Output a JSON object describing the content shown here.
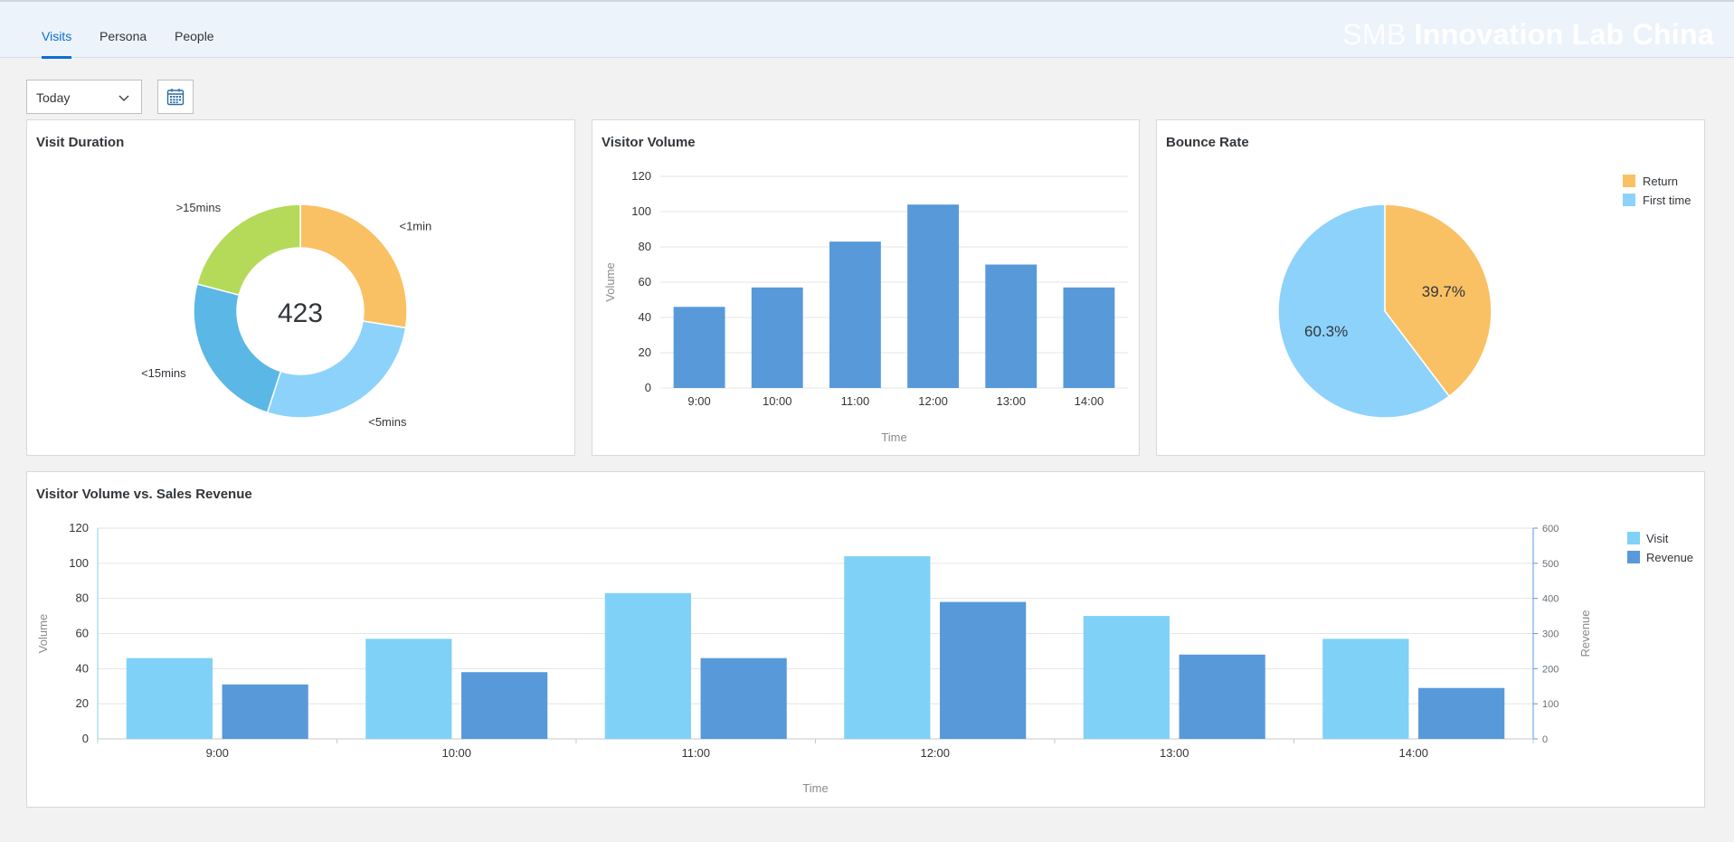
{
  "header": {
    "tabs": [
      {
        "label": "Visits",
        "active": true
      },
      {
        "label": "Persona",
        "active": false
      },
      {
        "label": "People",
        "active": false
      }
    ],
    "brand_light": "SMB",
    "brand_bold": "Innovation Lab China"
  },
  "toolbar": {
    "period_select": "Today",
    "calendar_icon": "calendar-icon"
  },
  "colors": {
    "accent": "#0a6ed1",
    "bar_dark": "#5899da",
    "bar_light": "#7fd1f7",
    "orange": "#f9c163",
    "green": "#b5d959",
    "cyan": "#5bb7e5",
    "light_blue": "#8cd2fb"
  },
  "visit_duration": {
    "title": "Visit Duration",
    "center_value": "423",
    "chart_data": {
      "type": "pie",
      "donut": true,
      "categories": [
        "<1min",
        "<5mins",
        "<15mins",
        ">15mins"
      ],
      "values": [
        27.5,
        27.5,
        24.1,
        20.9
      ],
      "colors": [
        "#f9c163",
        "#8cd2fb",
        "#5bb7e5",
        "#b5d959"
      ],
      "center_total": 423
    }
  },
  "visitor_volume": {
    "title": "Visitor Volume",
    "chart_data": {
      "type": "bar",
      "categories": [
        "9:00",
        "10:00",
        "11:00",
        "12:00",
        "13:00",
        "14:00"
      ],
      "values": [
        46,
        57,
        83,
        104,
        70,
        57
      ],
      "xlabel": "Time",
      "ylabel": "Volume",
      "ylim": [
        0,
        120
      ],
      "yticks": [
        0,
        20,
        40,
        60,
        80,
        100,
        120
      ],
      "grid": true
    }
  },
  "bounce_rate": {
    "title": "Bounce Rate",
    "chart_data": {
      "type": "pie",
      "categories": [
        "Return",
        "First time"
      ],
      "values": [
        39.7,
        60.3
      ],
      "labels": [
        "39.7%",
        "60.3%"
      ],
      "colors": [
        "#f9c163",
        "#8cd2fb"
      ],
      "legend": "top-right"
    }
  },
  "volume_vs_revenue": {
    "title": "Visitor Volume vs. Sales Revenue",
    "chart_data": {
      "type": "bar",
      "categories": [
        "9:00",
        "10:00",
        "11:00",
        "12:00",
        "13:00",
        "14:00"
      ],
      "series": [
        {
          "name": "Visit",
          "axis": "left",
          "color": "#7fd1f7",
          "values": [
            46,
            57,
            83,
            104,
            70,
            57
          ]
        },
        {
          "name": "Revenue",
          "axis": "right",
          "color": "#5899da",
          "values": [
            155,
            190,
            230,
            390,
            240,
            145
          ]
        }
      ],
      "xlabel": "Time",
      "ylabel": "Volume",
      "y2label": "Revenue",
      "ylim": [
        0,
        120
      ],
      "yticks": [
        0,
        20,
        40,
        60,
        80,
        100,
        120
      ],
      "y2lim": [
        0,
        600
      ],
      "y2ticks": [
        0,
        100,
        200,
        300,
        400,
        500,
        600
      ],
      "grid": true,
      "legend": "top-right"
    }
  }
}
